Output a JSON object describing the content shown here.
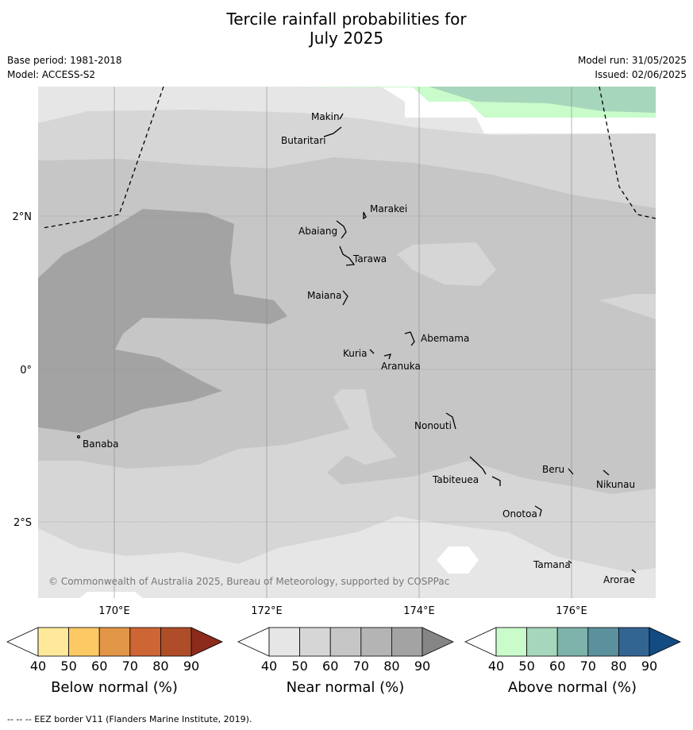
{
  "header": {
    "title_line1": "Tercile rainfall probabilities for",
    "title_line2": "July 2025",
    "base_period": "Base period: 1981-2018",
    "model": "Model: ACCESS-S2",
    "model_run": "Model run: 31/05/2025",
    "issued": "Issued: 02/06/2025"
  },
  "map": {
    "lat_labels": [
      "2°N",
      "0°",
      "2°S"
    ],
    "lon_labels": [
      "170°E",
      "172°E",
      "174°E",
      "176°E"
    ],
    "places": [
      "Makin",
      "Butaritari",
      "Marakei",
      "Abaiang",
      "Tarawa",
      "Maiana",
      "Abemama",
      "Kuria",
      "Aranuka",
      "Banaba",
      "Nonouti",
      "Tabiteuea",
      "Beru",
      "Nikunau",
      "Onotoa",
      "Tamana",
      "Arorae"
    ],
    "copyright": "© Commonwealth of Australia 2025, Bureau of Meteorology, supported by COSPPac"
  },
  "legend": {
    "ticks": [
      "40",
      "50",
      "60",
      "70",
      "80",
      "90"
    ],
    "below_label": "Below normal (%)",
    "near_label": "Near normal (%)",
    "above_label": "Above normal (%)",
    "below_colors": [
      "#ffffff",
      "#fee89a",
      "#fdc965",
      "#e29647",
      "#cd6535",
      "#b04d29",
      "#8c2b1c"
    ],
    "near_colors": [
      "#ffffff",
      "#e6e6e6",
      "#d6d6d6",
      "#c6c6c6",
      "#b4b4b4",
      "#a3a3a3",
      "#858585"
    ],
    "above_colors": [
      "#ffffff",
      "#c9fbcb",
      "#a6d6bb",
      "#7db3ab",
      "#5b919d",
      "#336593",
      "#124c82"
    ]
  },
  "footer": {
    "eez_note": "--  --  -- EEZ border V11 (Flanders Marine Institute, 2019)."
  }
}
